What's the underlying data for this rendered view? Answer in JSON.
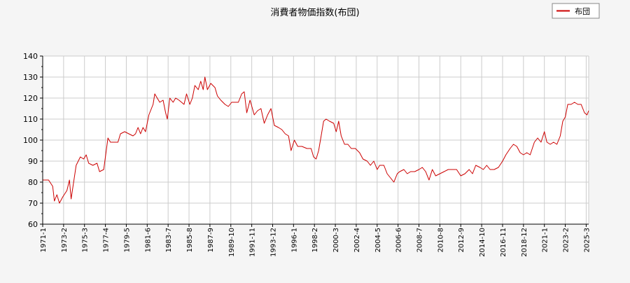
{
  "chart_data": {
    "type": "line",
    "title": "消費者物価指数(布団)",
    "xlabel": "",
    "ylabel": "",
    "ylim": [
      60,
      140
    ],
    "yticks": [
      60,
      70,
      80,
      90,
      100,
      110,
      120,
      130,
      140
    ],
    "x_start": "1971-1",
    "x_end": "2025-6",
    "xticks": [
      "1971-1",
      "1973-2",
      "1975-3",
      "1977-4",
      "1979-5",
      "1981-6",
      "1983-7",
      "1985-8",
      "1987-9",
      "1989-10",
      "1991-11",
      "1993-12",
      "1996-1",
      "1998-2",
      "2000-3",
      "2002-4",
      "2004-5",
      "2006-6",
      "2008-7",
      "2010-8",
      "2012-9",
      "2014-10",
      "2016-11",
      "2018-12",
      "2021-1",
      "2023-2",
      "2025-3"
    ],
    "grid": true,
    "legend_position": "top-right",
    "series_color": "#cc0000",
    "series": [
      {
        "name": "布団",
        "points": [
          [
            "1971-1",
            81
          ],
          [
            "1971-8",
            81
          ],
          [
            "1972-1",
            78
          ],
          [
            "1972-3",
            71
          ],
          [
            "1972-6",
            74
          ],
          [
            "1972-9",
            70
          ],
          [
            "1973-1",
            73
          ],
          [
            "1973-6",
            76
          ],
          [
            "1973-9",
            81
          ],
          [
            "1973-11",
            72
          ],
          [
            "1974-2",
            80
          ],
          [
            "1974-5",
            88
          ],
          [
            "1974-10",
            92
          ],
          [
            "1975-2",
            91
          ],
          [
            "1975-5",
            93
          ],
          [
            "1975-8",
            89
          ],
          [
            "1976-1",
            88
          ],
          [
            "1976-6",
            89
          ],
          [
            "1976-9",
            85
          ],
          [
            "1977-2",
            86
          ],
          [
            "1977-4",
            92
          ],
          [
            "1977-7",
            101
          ],
          [
            "1977-10",
            99
          ],
          [
            "1978-2",
            99
          ],
          [
            "1978-7",
            99
          ],
          [
            "1978-10",
            103
          ],
          [
            "1979-3",
            104
          ],
          [
            "1979-8",
            103
          ],
          [
            "1980-1",
            102
          ],
          [
            "1980-4",
            103
          ],
          [
            "1980-7",
            106
          ],
          [
            "1980-10",
            103
          ],
          [
            "1981-1",
            106
          ],
          [
            "1981-4",
            104
          ],
          [
            "1981-8",
            112
          ],
          [
            "1982-1",
            117
          ],
          [
            "1982-3",
            122
          ],
          [
            "1982-6",
            120
          ],
          [
            "1982-9",
            118
          ],
          [
            "1983-1",
            119
          ],
          [
            "1983-4",
            113
          ],
          [
            "1983-6",
            110
          ],
          [
            "1983-9",
            120
          ],
          [
            "1984-1",
            118
          ],
          [
            "1984-4",
            120
          ],
          [
            "1984-8",
            119
          ],
          [
            "1985-2",
            117
          ],
          [
            "1985-5",
            122
          ],
          [
            "1985-9",
            117
          ],
          [
            "1985-12",
            120
          ],
          [
            "1986-3",
            126
          ],
          [
            "1986-7",
            124
          ],
          [
            "1986-10",
            128
          ],
          [
            "1987-1",
            124
          ],
          [
            "1987-3",
            130
          ],
          [
            "1987-6",
            124
          ],
          [
            "1987-10",
            127
          ],
          [
            "1988-3",
            125
          ],
          [
            "1988-6",
            121
          ],
          [
            "1988-10",
            119
          ],
          [
            "1989-3",
            117
          ],
          [
            "1989-7",
            116
          ],
          [
            "1989-11",
            118
          ],
          [
            "1990-3",
            118
          ],
          [
            "1990-7",
            118
          ],
          [
            "1990-11",
            122
          ],
          [
            "1991-2",
            123
          ],
          [
            "1991-5",
            113
          ],
          [
            "1991-9",
            119
          ],
          [
            "1992-2",
            112
          ],
          [
            "1992-6",
            114
          ],
          [
            "1992-10",
            115
          ],
          [
            "1993-2",
            108
          ],
          [
            "1993-6",
            112
          ],
          [
            "1993-10",
            115
          ],
          [
            "1994-2",
            107
          ],
          [
            "1994-7",
            106
          ],
          [
            "1994-11",
            105
          ],
          [
            "1995-3",
            103
          ],
          [
            "1995-7",
            102
          ],
          [
            "1995-10",
            95
          ],
          [
            "1996-2",
            100
          ],
          [
            "1996-6",
            97
          ],
          [
            "1996-11",
            97
          ],
          [
            "1997-5",
            96
          ],
          [
            "1997-10",
            96
          ],
          [
            "1998-1",
            92
          ],
          [
            "1998-4",
            91
          ],
          [
            "1998-7",
            95
          ],
          [
            "1998-10",
            102
          ],
          [
            "1999-1",
            109
          ],
          [
            "1999-4",
            110
          ],
          [
            "1999-8",
            109
          ],
          [
            "2000-1",
            108
          ],
          [
            "2000-4",
            104
          ],
          [
            "2000-7",
            109
          ],
          [
            "2000-10",
            102
          ],
          [
            "2001-2",
            98
          ],
          [
            "2001-6",
            98
          ],
          [
            "2001-10",
            96
          ],
          [
            "2002-3",
            96
          ],
          [
            "2002-8",
            94
          ],
          [
            "2002-12",
            91
          ],
          [
            "2003-5",
            90
          ],
          [
            "2003-9",
            88
          ],
          [
            "2004-1",
            90
          ],
          [
            "2004-5",
            86
          ],
          [
            "2004-8",
            88
          ],
          [
            "2005-1",
            88
          ],
          [
            "2005-5",
            84
          ],
          [
            "2005-9",
            82
          ],
          [
            "2006-1",
            80
          ],
          [
            "2006-5",
            84
          ],
          [
            "2006-8",
            85
          ],
          [
            "2007-1",
            86
          ],
          [
            "2007-5",
            84
          ],
          [
            "2007-9",
            85
          ],
          [
            "2008-2",
            85
          ],
          [
            "2008-7",
            86
          ],
          [
            "2008-11",
            87
          ],
          [
            "2009-3",
            85
          ],
          [
            "2009-7",
            81
          ],
          [
            "2009-11",
            86
          ],
          [
            "2010-3",
            83
          ],
          [
            "2010-8",
            84
          ],
          [
            "2011-1",
            85
          ],
          [
            "2011-6",
            86
          ],
          [
            "2011-11",
            86
          ],
          [
            "2012-4",
            86
          ],
          [
            "2012-9",
            83
          ],
          [
            "2013-2",
            84
          ],
          [
            "2013-7",
            86
          ],
          [
            "2013-11",
            84
          ],
          [
            "2014-3",
            88
          ],
          [
            "2014-8",
            87
          ],
          [
            "2014-12",
            86
          ],
          [
            "2015-4",
            88
          ],
          [
            "2015-8",
            86
          ],
          [
            "2016-1",
            86
          ],
          [
            "2016-6",
            87
          ],
          [
            "2016-11",
            90
          ],
          [
            "2017-3",
            93
          ],
          [
            "2017-8",
            96
          ],
          [
            "2017-12",
            98
          ],
          [
            "2018-4",
            97
          ],
          [
            "2018-8",
            94
          ],
          [
            "2018-12",
            93
          ],
          [
            "2019-4",
            94
          ],
          [
            "2019-8",
            93
          ],
          [
            "2020-1",
            99
          ],
          [
            "2020-5",
            101
          ],
          [
            "2020-9",
            99
          ],
          [
            "2021-1",
            104
          ],
          [
            "2021-4",
            99
          ],
          [
            "2021-8",
            98
          ],
          [
            "2021-12",
            99
          ],
          [
            "2022-4",
            98
          ],
          [
            "2022-8",
            102
          ],
          [
            "2022-11",
            109
          ],
          [
            "2023-2",
            111
          ],
          [
            "2023-5",
            117
          ],
          [
            "2023-9",
            117
          ],
          [
            "2024-1",
            118
          ],
          [
            "2024-5",
            117
          ],
          [
            "2024-9",
            117
          ],
          [
            "2025-1",
            113
          ],
          [
            "2025-4",
            112
          ],
          [
            "2025-6",
            114
          ]
        ]
      }
    ]
  }
}
